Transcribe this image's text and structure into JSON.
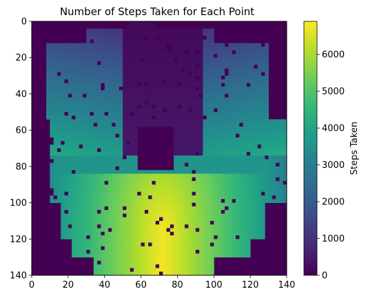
{
  "chart_data": {
    "type": "heatmap",
    "title": "Number of Steps Taken for Each Point",
    "xlabel": "",
    "ylabel": "",
    "xlim": [
      0,
      140
    ],
    "ylim": [
      140,
      0
    ],
    "x_ticks": [
      "0",
      "20",
      "40",
      "60",
      "80",
      "100",
      "120",
      "140"
    ],
    "y_ticks": [
      "0",
      "20",
      "40",
      "60",
      "80",
      "100",
      "120",
      "140"
    ],
    "colorbar": {
      "label": "Steps Taken",
      "range": [
        0,
        6900
      ],
      "ticks": [
        "0",
        "1000",
        "2000",
        "3000",
        "4000",
        "5000",
        "6000"
      ],
      "colormap": "viridis",
      "colors": [
        "#440154",
        "#482878",
        "#3e4989",
        "#31688e",
        "#26828e",
        "#1f9e89",
        "#35b779",
        "#6ece58",
        "#b5de2b",
        "#fde725"
      ]
    },
    "grid": "off",
    "regions": [
      {
        "area": "top center, y 0-70",
        "steps": 300
      },
      {
        "area": "top left lobe, y 15-55",
        "steps": 1000
      },
      {
        "area": "top right lobe, y 10-60",
        "steps": 900
      },
      {
        "area": "middle left, y 55-80",
        "steps": 3000
      },
      {
        "area": "middle right, y 55-90",
        "steps": 3400
      },
      {
        "area": "lower left, y 80-135",
        "steps": 5000
      },
      {
        "area": "lower right, y 85-135",
        "steps": 4800
      },
      {
        "area": "bottom center, y 85-140",
        "steps": 6300
      },
      {
        "area": "outside shape",
        "steps": 0
      }
    ]
  }
}
